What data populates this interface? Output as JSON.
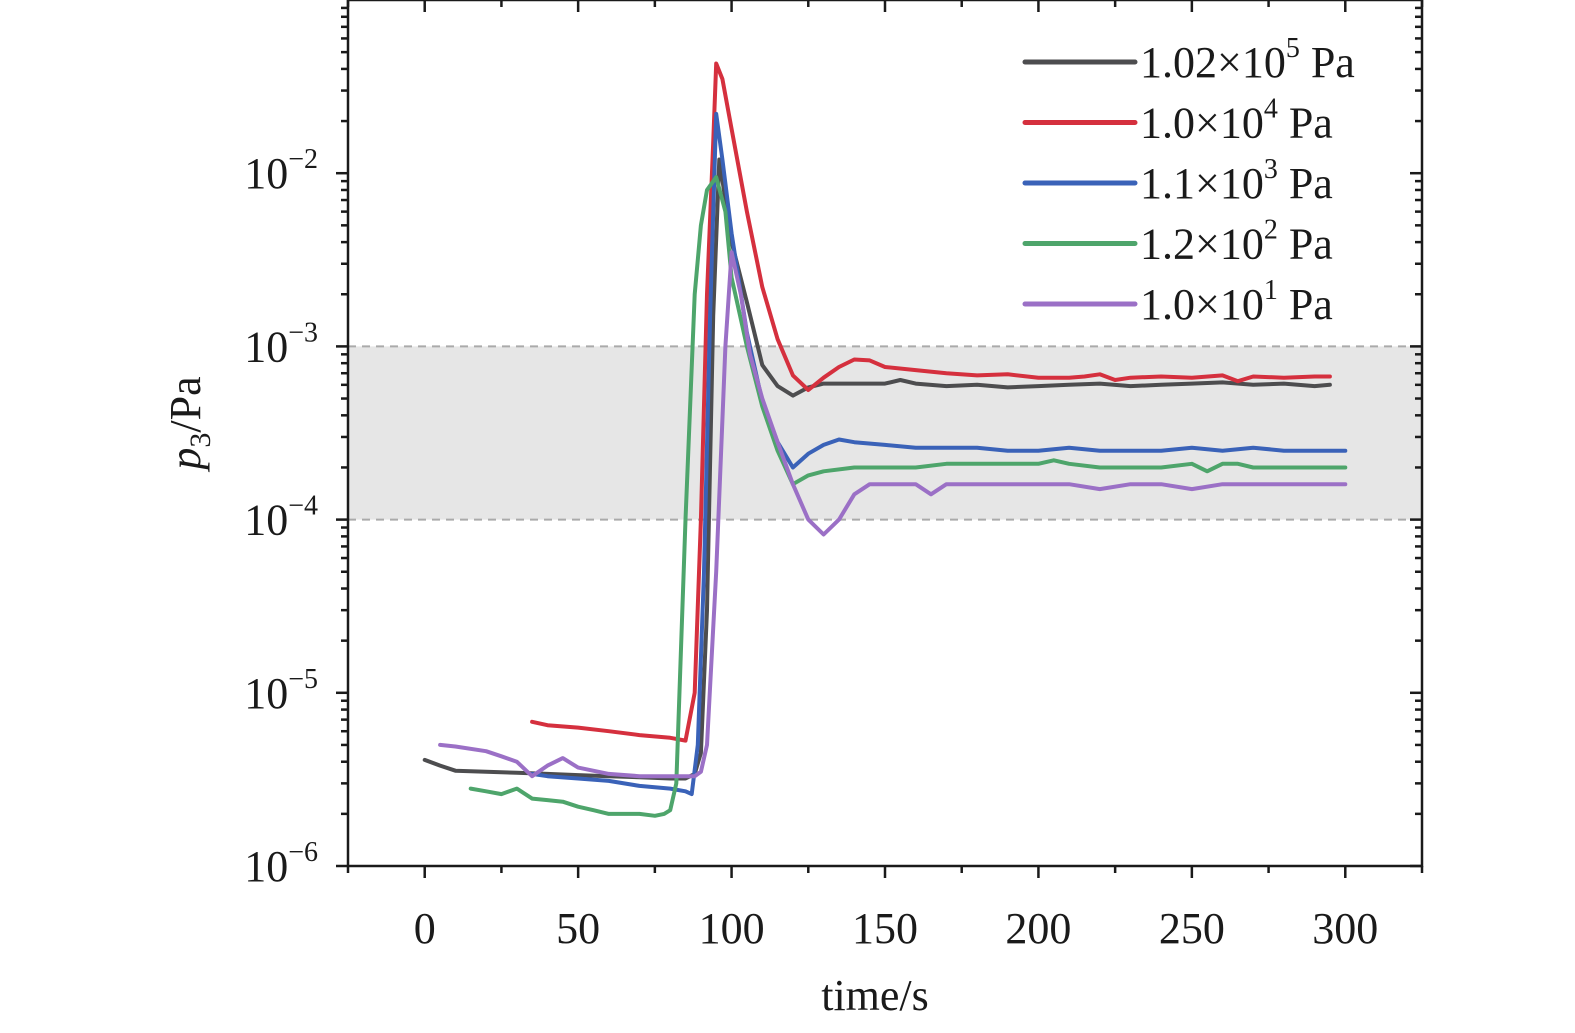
{
  "chart_data": {
    "type": "line",
    "xlabel": "time/s",
    "ylabel_base": "p",
    "ylabel_sub": "3",
    "ylabel_unit": "/Pa",
    "xlim": [
      -25,
      325
    ],
    "ylim": [
      1e-06,
      0.1
    ],
    "yscale": "log",
    "x_ticks": [
      0,
      50,
      100,
      150,
      200,
      250,
      300
    ],
    "x_tick_labels": [
      "0",
      "50",
      "100",
      "150",
      "200",
      "250",
      "300"
    ],
    "y_ticks": [
      {
        "value": 1e-06,
        "base": "10",
        "exp": "−6"
      },
      {
        "value": 1e-05,
        "base": "10",
        "exp": "−5"
      },
      {
        "value": 0.0001,
        "base": "10",
        "exp": "−4"
      },
      {
        "value": 0.001,
        "base": "10",
        "exp": "−3"
      },
      {
        "value": 0.01,
        "base": "10",
        "exp": "−2"
      }
    ],
    "band": {
      "from": 0.0001,
      "to": 0.001,
      "color": "#e6e6e6",
      "line_color": "#aaaaaa"
    },
    "legend_position": "top-right",
    "series": [
      {
        "name_mantissa": "1.02×10",
        "name_exp": "5",
        "name_unit": " Pa",
        "color": "#4d4d4f",
        "x": [
          0,
          5,
          10,
          20,
          30,
          40,
          50,
          60,
          70,
          80,
          85,
          88,
          90,
          92,
          94,
          96,
          98,
          100,
          105,
          110,
          115,
          120,
          125,
          130,
          140,
          150,
          155,
          160,
          170,
          180,
          190,
          200,
          210,
          220,
          230,
          240,
          250,
          260,
          270,
          280,
          290,
          295
        ],
        "y": [
          4.1e-06,
          3.8e-06,
          3.55e-06,
          3.5e-06,
          3.45e-06,
          3.4e-06,
          3.35e-06,
          3.3e-06,
          3.25e-06,
          3.2e-06,
          3.2e-06,
          3.4e-06,
          4.5e-06,
          3e-05,
          0.0015,
          0.012,
          0.007,
          0.004,
          0.0018,
          0.00078,
          0.00059,
          0.00052,
          0.00058,
          0.00061,
          0.00061,
          0.00061,
          0.00064,
          0.00061,
          0.00059,
          0.0006,
          0.00058,
          0.00059,
          0.0006,
          0.00061,
          0.00059,
          0.0006,
          0.00061,
          0.00062,
          0.0006,
          0.00061,
          0.00059,
          0.0006
        ]
      },
      {
        "name_mantissa": "1.0×10",
        "name_exp": "4",
        "name_unit": " Pa",
        "color": "#d5303e",
        "x": [
          35,
          40,
          50,
          60,
          70,
          80,
          85,
          88,
          90,
          92,
          94,
          95,
          97,
          100,
          105,
          110,
          115,
          120,
          125,
          130,
          135,
          140,
          145,
          150,
          160,
          170,
          180,
          190,
          200,
          210,
          215,
          220,
          225,
          230,
          240,
          250,
          260,
          265,
          270,
          280,
          290,
          295
        ],
        "y": [
          6.8e-06,
          6.5e-06,
          6.3e-06,
          6e-06,
          5.7e-06,
          5.5e-06,
          5.3e-06,
          1e-05,
          0.0001,
          0.002,
          0.015,
          0.043,
          0.035,
          0.018,
          0.006,
          0.0022,
          0.0011,
          0.00068,
          0.00056,
          0.00066,
          0.00076,
          0.00084,
          0.00083,
          0.00076,
          0.00073,
          0.0007,
          0.00068,
          0.00069,
          0.00066,
          0.00066,
          0.00067,
          0.00069,
          0.00064,
          0.00066,
          0.00067,
          0.00066,
          0.00068,
          0.00063,
          0.00067,
          0.00066,
          0.00067,
          0.00067
        ]
      },
      {
        "name_mantissa": "1.1×10",
        "name_exp": "3",
        "name_unit": " Pa",
        "color": "#3a62b8",
        "x": [
          35,
          40,
          50,
          60,
          70,
          80,
          85,
          87,
          89,
          91,
          93,
          95,
          97,
          100,
          105,
          110,
          115,
          120,
          125,
          130,
          135,
          140,
          150,
          160,
          170,
          180,
          190,
          200,
          210,
          220,
          230,
          240,
          250,
          260,
          270,
          280,
          290,
          300
        ],
        "y": [
          3.4e-06,
          3.3e-06,
          3.2e-06,
          3.1e-06,
          2.9e-06,
          2.8e-06,
          2.7e-06,
          2.6e-06,
          5e-06,
          5e-05,
          0.0015,
          0.022,
          0.012,
          0.0045,
          0.0012,
          0.00048,
          0.00028,
          0.0002,
          0.00024,
          0.00027,
          0.00029,
          0.00028,
          0.00027,
          0.00026,
          0.00026,
          0.00026,
          0.00025,
          0.00025,
          0.00026,
          0.00025,
          0.00025,
          0.00025,
          0.00026,
          0.00025,
          0.00026,
          0.00025,
          0.00025,
          0.00025
        ]
      },
      {
        "name_mantissa": "1.2×10",
        "name_exp": "2",
        "name_unit": " Pa",
        "color": "#4ea56b",
        "x": [
          15,
          20,
          25,
          30,
          35,
          40,
          45,
          50,
          55,
          60,
          70,
          75,
          78,
          80,
          82,
          85,
          88,
          90,
          92,
          95,
          98,
          100,
          105,
          110,
          115,
          120,
          125,
          130,
          140,
          150,
          160,
          170,
          180,
          190,
          200,
          205,
          210,
          220,
          230,
          240,
          250,
          255,
          260,
          265,
          270,
          280,
          290,
          300
        ],
        "y": [
          2.8e-06,
          2.7e-06,
          2.6e-06,
          2.8e-06,
          2.45e-06,
          2.4e-06,
          2.35e-06,
          2.2e-06,
          2.1e-06,
          2e-06,
          2e-06,
          1.95e-06,
          2e-06,
          2.1e-06,
          3e-06,
          0.0001,
          0.002,
          0.005,
          0.008,
          0.0095,
          0.006,
          0.0025,
          0.001,
          0.00045,
          0.00025,
          0.00016,
          0.00018,
          0.00019,
          0.0002,
          0.0002,
          0.0002,
          0.00021,
          0.00021,
          0.00021,
          0.00021,
          0.00022,
          0.00021,
          0.0002,
          0.0002,
          0.0002,
          0.00021,
          0.00019,
          0.00021,
          0.00021,
          0.0002,
          0.0002,
          0.0002,
          0.0002
        ]
      },
      {
        "name_mantissa": "1.0×10",
        "name_exp": "1",
        "name_unit": " Pa",
        "color": "#9b70c6",
        "x": [
          5,
          10,
          20,
          25,
          30,
          35,
          40,
          45,
          50,
          60,
          70,
          80,
          85,
          88,
          90,
          92,
          95,
          98,
          100,
          103,
          106,
          110,
          115,
          120,
          125,
          130,
          135,
          140,
          145,
          150,
          160,
          165,
          170,
          180,
          190,
          200,
          210,
          220,
          230,
          240,
          250,
          260,
          270,
          280,
          290,
          300
        ],
        "y": [
          5e-06,
          4.9e-06,
          4.6e-06,
          4.3e-06,
          4e-06,
          3.3e-06,
          3.8e-06,
          4.2e-06,
          3.7e-06,
          3.4e-06,
          3.3e-06,
          3.3e-06,
          3.3e-06,
          3.3e-06,
          3.5e-06,
          5e-06,
          5e-05,
          0.001,
          0.0035,
          0.002,
          0.0009,
          0.0005,
          0.00028,
          0.00016,
          0.0001,
          8.2e-05,
          0.0001,
          0.00014,
          0.00016,
          0.00016,
          0.00016,
          0.00014,
          0.00016,
          0.00016,
          0.00016,
          0.00016,
          0.00016,
          0.00015,
          0.00016,
          0.00016,
          0.00015,
          0.00016,
          0.00016,
          0.00016,
          0.00016,
          0.00016
        ]
      }
    ]
  }
}
